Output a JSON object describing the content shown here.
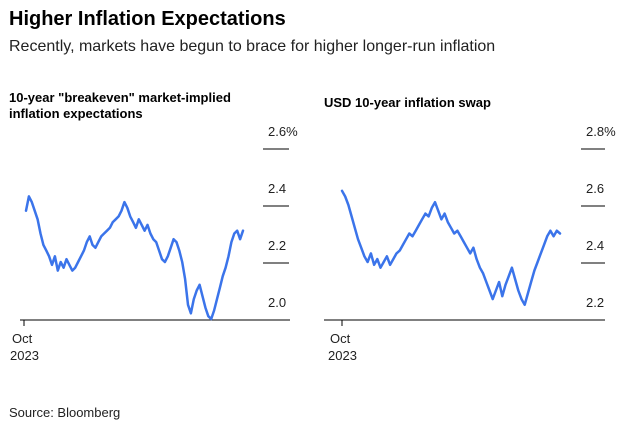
{
  "title": "Higher Inflation Expectations",
  "subtitle": "Recently, markets have begun to brace for higher longer-run inflation",
  "source": "Source: Bloomberg",
  "colors": {
    "line": "#3b74ea",
    "axis": "#000000",
    "text": "#222222"
  },
  "chart_data": [
    {
      "type": "line",
      "title": "10-year \"breakeven\" market-implied inflation expectations",
      "title_lines": [
        "10-year \"breakeven\" market-implied",
        "inflation expectations"
      ],
      "x_tick": {
        "month": "Oct",
        "year": "2023"
      },
      "y_ticks": [
        "2.6%",
        "2.4",
        "2.2",
        "2.0"
      ],
      "ylim": [
        1.95,
        2.65
      ],
      "values": [
        2.38,
        2.43,
        2.41,
        2.38,
        2.35,
        2.3,
        2.26,
        2.24,
        2.22,
        2.19,
        2.22,
        2.17,
        2.2,
        2.18,
        2.21,
        2.19,
        2.17,
        2.18,
        2.2,
        2.22,
        2.24,
        2.27,
        2.29,
        2.26,
        2.25,
        2.27,
        2.29,
        2.3,
        2.31,
        2.32,
        2.34,
        2.35,
        2.36,
        2.38,
        2.41,
        2.39,
        2.36,
        2.34,
        2.32,
        2.35,
        2.33,
        2.31,
        2.33,
        2.3,
        2.28,
        2.27,
        2.24,
        2.21,
        2.2,
        2.22,
        2.25,
        2.28,
        2.27,
        2.24,
        2.2,
        2.14,
        2.05,
        2.02,
        2.07,
        2.1,
        2.12,
        2.08,
        2.04,
        2.01,
        2.0,
        2.03,
        2.07,
        2.11,
        2.15,
        2.18,
        2.22,
        2.27,
        2.3,
        2.31,
        2.28,
        2.31
      ]
    },
    {
      "type": "line",
      "title": "USD 10-year inflation swap",
      "title_lines": [
        "USD 10-year inflation swap"
      ],
      "x_tick": {
        "month": "Oct",
        "year": "2023"
      },
      "y_ticks": [
        "2.8%",
        "2.6",
        "2.4",
        "2.2"
      ],
      "ylim": [
        2.15,
        2.85
      ],
      "values": [
        2.65,
        2.63,
        2.6,
        2.56,
        2.52,
        2.48,
        2.45,
        2.42,
        2.4,
        2.43,
        2.39,
        2.41,
        2.38,
        2.4,
        2.42,
        2.39,
        2.41,
        2.43,
        2.44,
        2.46,
        2.48,
        2.5,
        2.49,
        2.51,
        2.53,
        2.55,
        2.57,
        2.56,
        2.59,
        2.61,
        2.58,
        2.55,
        2.57,
        2.54,
        2.52,
        2.5,
        2.51,
        2.49,
        2.47,
        2.45,
        2.43,
        2.45,
        2.41,
        2.38,
        2.36,
        2.33,
        2.3,
        2.27,
        2.3,
        2.33,
        2.28,
        2.32,
        2.35,
        2.38,
        2.34,
        2.3,
        2.27,
        2.25,
        2.29,
        2.33,
        2.37,
        2.4,
        2.43,
        2.46,
        2.49,
        2.51,
        2.49,
        2.51,
        2.5
      ]
    }
  ]
}
